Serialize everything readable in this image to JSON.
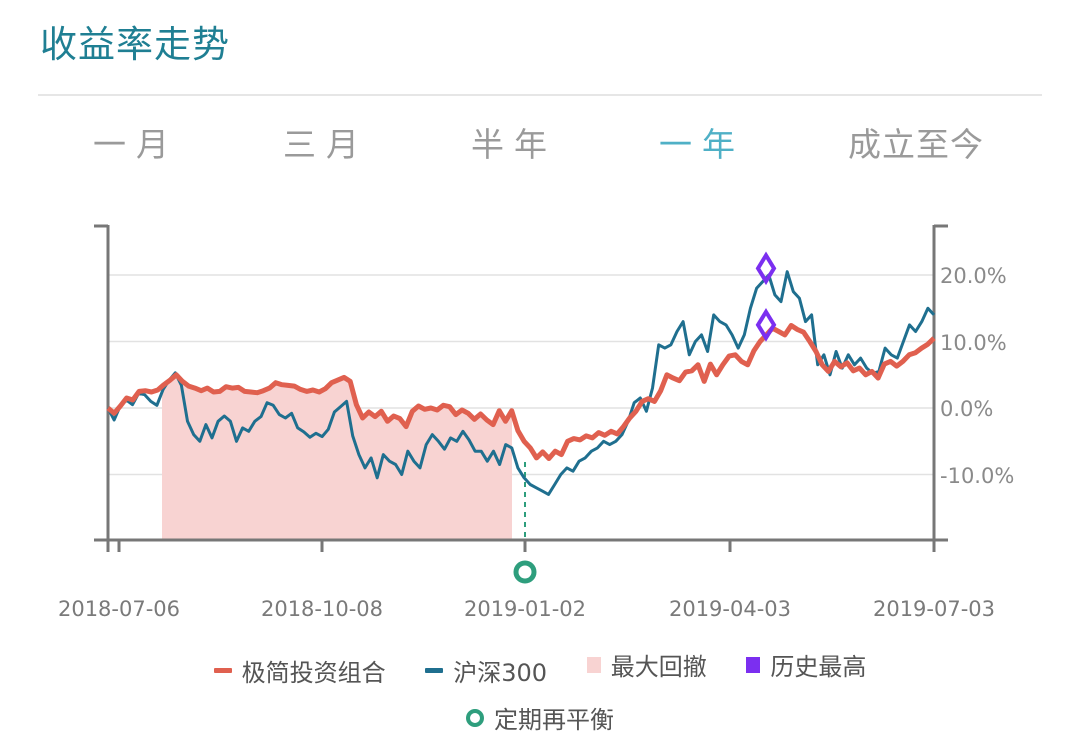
{
  "header": {
    "title": "收益率走势"
  },
  "tabs": [
    {
      "label": "一月",
      "active": false
    },
    {
      "label": "三月",
      "active": false
    },
    {
      "label": "半年",
      "active": false
    },
    {
      "label": "一年",
      "active": true
    },
    {
      "label": "成立至今",
      "active": false
    }
  ],
  "legend": {
    "portfolio": "极简投资组合",
    "index": "沪深300",
    "drawdown": "最大回撤",
    "high": "历史最高",
    "rebalance": "定期再平衡"
  },
  "colors": {
    "portfolio": "#e0604f",
    "index": "#1f6f8f",
    "drawdown": "#f8d3d2",
    "high": "#7b2ff0",
    "rebalance": "#2e9e7d",
    "title": "#1f7f93",
    "active_tab": "#4fb0c6"
  },
  "chart_data": {
    "type": "line",
    "title": "收益率走势",
    "xlabel": "",
    "ylabel": "",
    "ylim": [
      -20,
      28
    ],
    "yticks": [
      "20.0%",
      "10.0%",
      "0.0%",
      "-10.0%"
    ],
    "ytick_values": [
      20,
      10,
      0,
      -10
    ],
    "xticks": [
      "2018-07-06",
      "2018-10-08",
      "2019-01-02",
      "2019-04-03",
      "2019-07-03"
    ],
    "x_range": [
      "2018-07-03",
      "2019-07-03"
    ],
    "grid": true,
    "legend_position": "bottom",
    "series": [
      {
        "name": "极简投资组合",
        "values": [
          0,
          -0.8,
          0.3,
          1.5,
          1.2,
          2.5,
          2.6,
          2.4,
          2.7,
          3.5,
          4.2,
          5.0,
          4.0,
          3.3,
          3.0,
          2.6,
          3.0,
          2.4,
          2.5,
          3.2,
          3.0,
          3.1,
          2.5,
          2.4,
          2.3,
          2.6,
          3.0,
          3.8,
          3.5,
          3.4,
          3.3,
          2.8,
          2.5,
          2.7,
          2.4,
          2.9,
          3.8,
          4.2,
          4.6,
          4.0,
          0.5,
          -1.5,
          -0.6,
          -1.3,
          -0.5,
          -2.0,
          -1.2,
          -1.6,
          -2.8,
          -0.5,
          0.3,
          -0.2,
          0.0,
          -0.3,
          0.4,
          0.2,
          -1.0,
          -0.3,
          -0.8,
          -1.7,
          -0.9,
          -1.8,
          -2.5,
          -0.4,
          -2.0,
          -0.4,
          -3.4,
          -5.0,
          -6.0,
          -7.5,
          -6.6,
          -7.6,
          -6.5,
          -7.0,
          -5.0,
          -4.6,
          -4.8,
          -4.2,
          -4.5,
          -3.7,
          -4.1,
          -3.5,
          -3.9,
          -2.8,
          -1.5,
          -0.5,
          1.0,
          1.4,
          1.0,
          2.6,
          5.0,
          4.5,
          4.1,
          5.4,
          5.6,
          6.5,
          4.0,
          6.6,
          5.0,
          6.5,
          7.8,
          8.0,
          7.0,
          6.5,
          8.6,
          10.0,
          11.0,
          12.0,
          11.5,
          11.0,
          12.4,
          11.8,
          11.4,
          10.0,
          8.5,
          6.5,
          5.5,
          7.0,
          6.2,
          6.8,
          5.6,
          6.0,
          5.0,
          5.5,
          4.5,
          6.6,
          7.0,
          6.3,
          7.0,
          8.0,
          8.3,
          9.0,
          9.6,
          10.5
        ],
        "color": "#e0604f"
      },
      {
        "name": "沪深300",
        "values": [
          0,
          -1.8,
          0.3,
          1.2,
          0.5,
          2.2,
          2.0,
          1.0,
          0.4,
          2.8,
          4.2,
          5.3,
          3.4,
          -2.0,
          -4.0,
          -5.0,
          -2.5,
          -4.5,
          -2.0,
          -1.2,
          -2.0,
          -5.0,
          -3.0,
          -3.5,
          -2.0,
          -1.3,
          0.8,
          0.4,
          -1.0,
          -1.5,
          -0.8,
          -3.0,
          -3.6,
          -4.4,
          -3.8,
          -4.3,
          -3.2,
          -0.6,
          0.2,
          1.0,
          -4.2,
          -7.0,
          -9.0,
          -7.5,
          -10.5,
          -7.0,
          -8.0,
          -8.5,
          -10.0,
          -6.5,
          -8.0,
          -9.0,
          -5.5,
          -4.0,
          -5.0,
          -6.2,
          -4.5,
          -5.0,
          -3.5,
          -4.8,
          -6.5,
          -6.5,
          -8.0,
          -6.5,
          -8.5,
          -5.5,
          -6.0,
          -9.0,
          -10.5,
          -11.5,
          -12.0,
          -12.5,
          -13.0,
          -11.5,
          -10.0,
          -9.0,
          -9.5,
          -8.0,
          -7.5,
          -6.5,
          -6.0,
          -5.0,
          -5.5,
          -5.0,
          -4.0,
          -2.0,
          0.8,
          1.5,
          -0.5,
          3.0,
          9.5,
          9.0,
          9.5,
          11.5,
          13.0,
          8.0,
          10.0,
          11.0,
          8.5,
          14.0,
          13.0,
          12.5,
          11.0,
          9.0,
          11.0,
          15.0,
          18.0,
          19.0,
          20.0,
          17.0,
          16.0,
          20.5,
          17.5,
          16.5,
          13.0,
          14.0,
          6.5,
          8.0,
          5.0,
          8.5,
          6.0,
          8.0,
          6.5,
          7.5,
          6.0,
          5.2,
          5.5,
          9.0,
          8.0,
          7.5,
          10.0,
          12.5,
          11.5,
          13.0,
          15.0,
          14.0
        ],
        "color": "#1f6f8f"
      }
    ],
    "max_drawdown_region": {
      "start": "2018-08-01",
      "end": "2018-12-28"
    },
    "historical_high_markers": [
      {
        "series": "沪深300",
        "date": "2019-04-19",
        "value": 21.0
      },
      {
        "series": "极简投资组合",
        "date": "2019-04-19",
        "value": 12.5
      }
    ],
    "rebalance_markers": [
      {
        "date": "2019-01-02"
      }
    ]
  }
}
